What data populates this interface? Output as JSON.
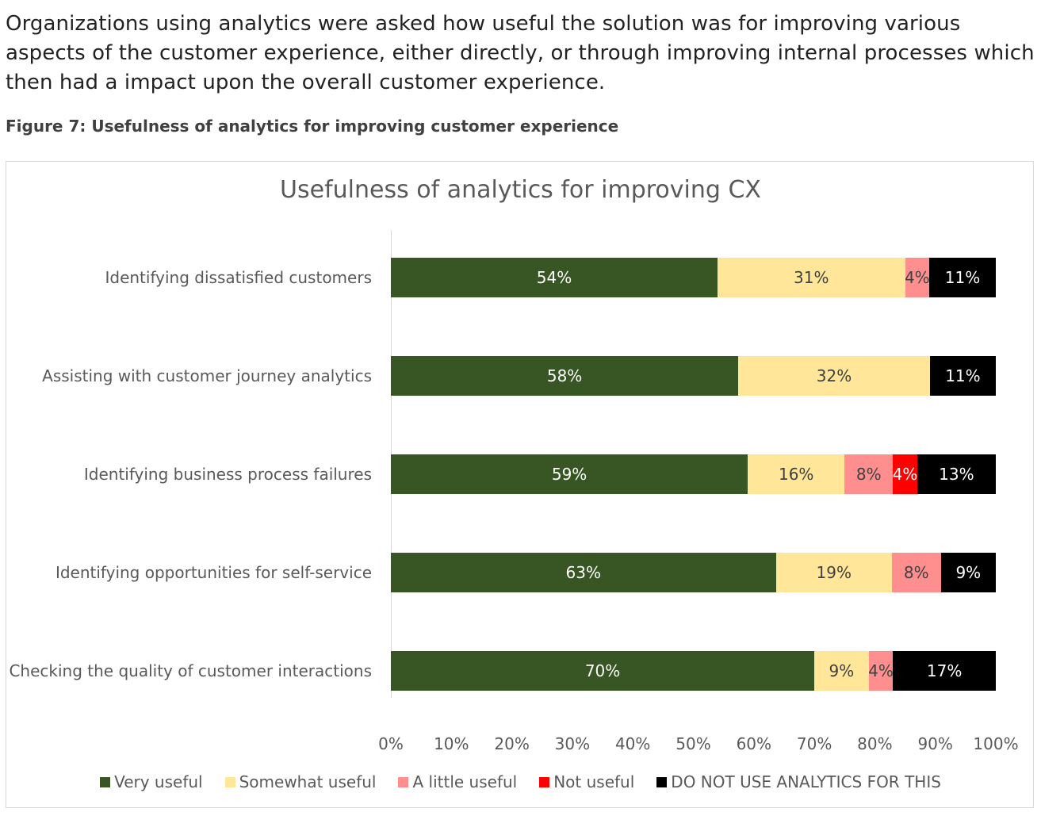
{
  "intro_text": "Organizations using analytics were asked how useful the solution was for improving various aspects of the customer experience, either directly, or through improving internal processes which then had a impact upon the overall customer experience.",
  "figure_caption": "Figure 7: Usefulness of analytics for improving customer experience",
  "chart_data": {
    "type": "bar",
    "orientation": "horizontal",
    "stacked": true,
    "percent_stacked": true,
    "title": "Usefulness of analytics for improving CX",
    "categories": [
      "Identifying dissatisfied customers",
      "Assisting with customer journey analytics",
      "Identifying business process failures",
      "Identifying opportunities for self-service",
      "Checking the quality of customer interactions"
    ],
    "series": [
      {
        "name": "Very useful",
        "color": "#375623",
        "label_color": "#ffffff",
        "values": [
          54,
          58,
          59,
          63,
          70
        ]
      },
      {
        "name": "Somewhat useful",
        "color": "#FFE699",
        "label_color": "#404040",
        "values": [
          31,
          32,
          16,
          19,
          9
        ]
      },
      {
        "name": "A little useful",
        "color": "#FF8F8F",
        "label_color": "#404040",
        "values": [
          4,
          0,
          8,
          8,
          4
        ]
      },
      {
        "name": "Not useful",
        "color": "#FF0000",
        "label_color": "#ffffff",
        "values": [
          0,
          0,
          4,
          0,
          0
        ]
      },
      {
        "name": "DO NOT USE ANALYTICS FOR THIS",
        "color": "#000000",
        "label_color": "#ffffff",
        "values": [
          11,
          11,
          13,
          9,
          17
        ]
      }
    ],
    "xlim": [
      0,
      100
    ],
    "x_ticks": [
      "0%",
      "10%",
      "20%",
      "30%",
      "40%",
      "50%",
      "60%",
      "70%",
      "80%",
      "90%",
      "100%"
    ],
    "grid": false,
    "legend_position": "bottom"
  }
}
